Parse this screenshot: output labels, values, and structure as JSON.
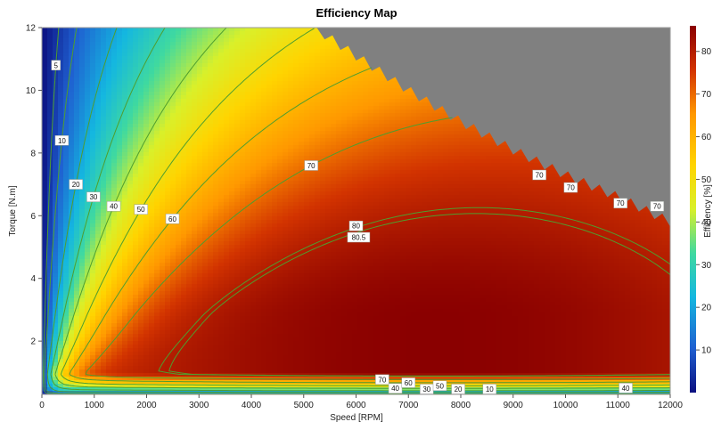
{
  "chart_data": {
    "type": "heatmap",
    "title": "Efficiency Map",
    "xlabel": "Speed [RPM]",
    "ylabel": "Torque [N.m]",
    "colorbar_label": "Efficiency [%]",
    "xlim": [
      0,
      12000
    ],
    "ylim": [
      0.3,
      12
    ],
    "zlim": [
      0,
      86
    ],
    "x_ticks": [
      0,
      1000,
      2000,
      3000,
      4000,
      5000,
      6000,
      7000,
      8000,
      9000,
      10000,
      11000,
      12000
    ],
    "y_ticks": [
      2,
      4,
      6,
      8,
      10,
      12
    ],
    "colorbar_ticks": [
      10,
      20,
      30,
      40,
      50,
      60,
      70,
      80
    ],
    "unreachable_color": "#808080",
    "max_torque_curve": [
      {
        "speed": 0,
        "torque": 12
      },
      {
        "speed": 5200,
        "torque": 12
      },
      {
        "speed": 6000,
        "torque": 11.1
      },
      {
        "speed": 7000,
        "torque": 10.0
      },
      {
        "speed": 8000,
        "torque": 9.0
      },
      {
        "speed": 9000,
        "torque": 8.1
      },
      {
        "speed": 10000,
        "torque": 7.3
      },
      {
        "speed": 11000,
        "torque": 6.6
      },
      {
        "speed": 12000,
        "torque": 5.8
      }
    ],
    "peak_efficiency_region": {
      "speed": 7500,
      "torque": 2.8,
      "efficiency": 86
    },
    "contours": [
      {
        "level": 5,
        "label": "5"
      },
      {
        "level": 10,
        "label": "10"
      },
      {
        "level": 20,
        "label": "20"
      },
      {
        "level": 30,
        "label": "30"
      },
      {
        "level": 40,
        "label": "40"
      },
      {
        "level": 50,
        "label": "50"
      },
      {
        "level": 60,
        "label": "60"
      },
      {
        "level": 70,
        "label": "70"
      },
      {
        "level": 80,
        "label": "80"
      },
      {
        "level": 80.5,
        "label": "80.5"
      }
    ],
    "contour_labels_shown": [
      "5",
      "10",
      "20",
      "30",
      "40",
      "50",
      "60",
      "70",
      "70",
      "70",
      "70",
      "70",
      "80",
      "80.5",
      "70",
      "40",
      "60",
      "30",
      "50",
      "20",
      "10",
      "5",
      "40"
    ]
  }
}
